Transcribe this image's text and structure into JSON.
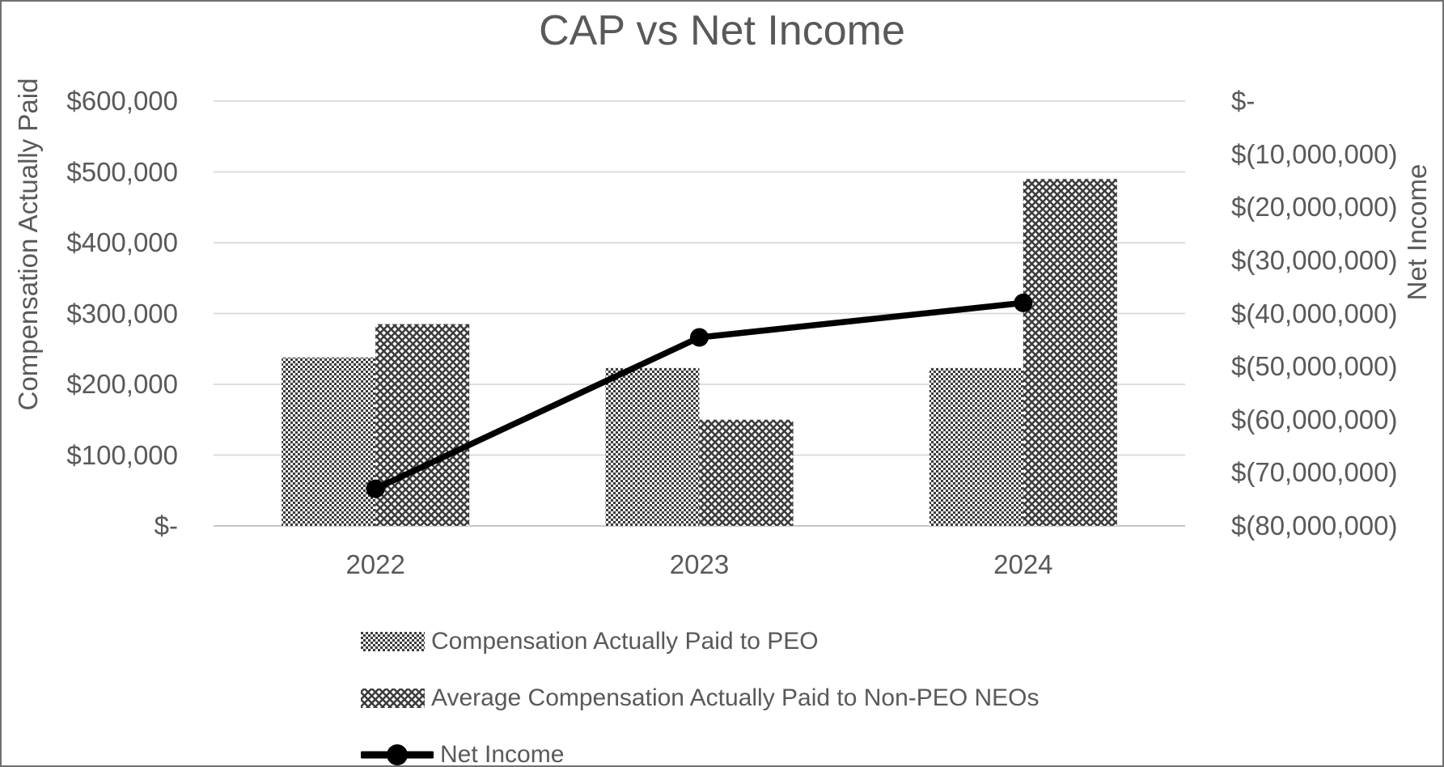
{
  "title": "CAP vs Net Income",
  "left_axis": {
    "title": "Compensation Actually Paid",
    "ticks": [
      "$600,000",
      "$500,000",
      "$400,000",
      "$300,000",
      "$200,000",
      "$100,000",
      "$-"
    ]
  },
  "right_axis": {
    "title": "Net Income",
    "ticks": [
      "$-",
      "$(10,000,000)",
      "$(20,000,000)",
      "$(30,000,000)",
      "$(40,000,000)",
      "$(50,000,000)",
      "$(60,000,000)",
      "$(70,000,000)",
      "$(80,000,000)"
    ]
  },
  "x_axis": {
    "categories": [
      "2022",
      "2023",
      "2024"
    ]
  },
  "legend": {
    "items": [
      {
        "label": "Compensation Actually Paid to PEO",
        "swatch": "checker"
      },
      {
        "label": "Average Compensation Actually Paid to Non-PEO NEOs",
        "swatch": "crosshatch"
      },
      {
        "label": "Net Income",
        "swatch": "line-marker"
      }
    ]
  },
  "colors": {
    "text": "#595959",
    "gridline": "#d9d9d9",
    "axis_line": "#bfbfbf",
    "pattern_fg": "#3b3b3b",
    "pattern_bg": "#ffffff",
    "line_series": "#000000",
    "border": "#707070"
  },
  "chart_data": {
    "type": "bar",
    "subtype": "combo-bar-line-dual-axis",
    "title": "CAP vs Net Income",
    "categories": [
      "2022",
      "2023",
      "2024"
    ],
    "series": [
      {
        "name": "Compensation Actually Paid to PEO",
        "type": "bar",
        "axis": "left",
        "pattern": "checker",
        "values": [
          238000,
          223000,
          223000
        ]
      },
      {
        "name": "Average Compensation Actually Paid to Non-PEO NEOs",
        "type": "bar",
        "axis": "left",
        "pattern": "crosshatch",
        "values": [
          285000,
          150000,
          490000
        ]
      },
      {
        "name": "Net Income",
        "type": "line",
        "axis": "right",
        "values": [
          -73000000,
          -44500000,
          -38000000
        ]
      }
    ],
    "left_axis_label": "Compensation Actually Paid",
    "right_axis_label": "Net Income",
    "left_ylim": [
      0,
      600000
    ],
    "left_tick_step": 100000,
    "right_ylim": [
      -80000000,
      0
    ],
    "right_tick_step": 10000000,
    "grid": true,
    "legend_position": "bottom-left"
  }
}
